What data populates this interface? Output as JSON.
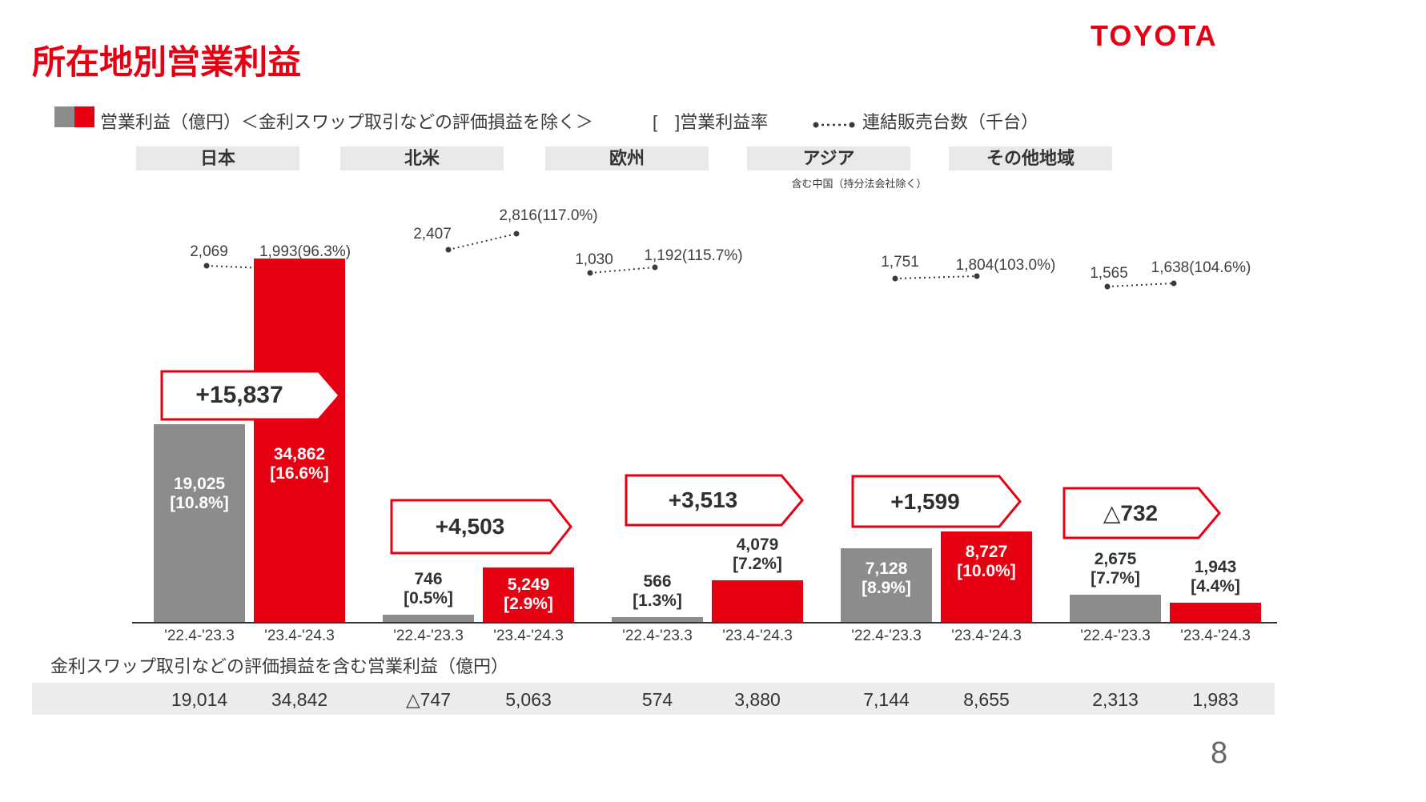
{
  "slide": {
    "title": "所在地別営業利益",
    "logo": "TOYOTA",
    "page_number": "8"
  },
  "legend": {
    "bars": "営業利益（億円）＜金利スワップ取引などの評価損益を除く＞",
    "margin": "[　]営業利益率",
    "sales": "連結販売台数（千台）"
  },
  "footer": {
    "note": "金利スワップ取引などの評価損益を含む営業利益（億円）"
  },
  "chart_data": {
    "type": "bar",
    "title": "所在地別営業利益（億円）＜金利スワップ取引などの評価損益を除く＞",
    "unit": "億円",
    "categories": [
      "'22.4-'23.3",
      "'23.4-'24.3"
    ],
    "ylim": [
      0,
      35000
    ],
    "grid": false,
    "legend_position": "top",
    "colors": {
      "prev": "#8c8c8c",
      "curr": "#e60012",
      "accent": "#e60012"
    },
    "regions": [
      {
        "name": "日本",
        "note": "",
        "operating_income": [
          19025,
          34862
        ],
        "labels": [
          "19,025",
          "34,862"
        ],
        "margin_rates_pct": [
          10.8,
          16.6
        ],
        "margin_labels": [
          "[10.8%]",
          "[16.6%]"
        ],
        "change": "+15,837",
        "vehicle_sales": {
          "prev": "2,069",
          "curr": "1,993",
          "yoy": "(96.3%)"
        },
        "incl_swap": [
          "19,014",
          "34,842"
        ]
      },
      {
        "name": "北米",
        "note": "",
        "operating_income": [
          746,
          5249
        ],
        "labels": [
          "746",
          "5,249"
        ],
        "margin_rates_pct": [
          0.5,
          2.9
        ],
        "margin_labels": [
          "[0.5%]",
          "[2.9%]"
        ],
        "change": "+4,503",
        "vehicle_sales": {
          "prev": "2,407",
          "curr": "2,816",
          "yoy": "(117.0%)"
        },
        "incl_swap": [
          "△747",
          "5,063"
        ]
      },
      {
        "name": "欧州",
        "note": "",
        "operating_income": [
          566,
          4079
        ],
        "labels": [
          "566",
          "4,079"
        ],
        "margin_rates_pct": [
          1.3,
          7.2
        ],
        "margin_labels": [
          "[1.3%]",
          "[7.2%]"
        ],
        "change": "+3,513",
        "vehicle_sales": {
          "prev": "1,030",
          "curr": "1,192",
          "yoy": "(115.7%)"
        },
        "incl_swap": [
          "574",
          "3,880"
        ]
      },
      {
        "name": "アジア",
        "note": "含む中国（持分法会社除く）",
        "operating_income": [
          7128,
          8727
        ],
        "labels": [
          "7,128",
          "8,727"
        ],
        "margin_rates_pct": [
          8.9,
          10.0
        ],
        "margin_labels": [
          "[8.9%]",
          "[10.0%]"
        ],
        "change": "+1,599",
        "vehicle_sales": {
          "prev": "1,751",
          "curr": "1,804",
          "yoy": "(103.0%)"
        },
        "incl_swap": [
          "7,144",
          "8,655"
        ]
      },
      {
        "name": "その他地域",
        "note": "",
        "operating_income": [
          2675,
          1943
        ],
        "labels": [
          "2,675",
          "1,943"
        ],
        "margin_rates_pct": [
          7.7,
          4.4
        ],
        "margin_labels": [
          "[7.7%]",
          "[4.4%]"
        ],
        "change": "△732",
        "vehicle_sales": {
          "prev": "1,565",
          "curr": "1,638",
          "yoy": "(104.6%)"
        },
        "incl_swap": [
          "2,313",
          "1,983"
        ]
      }
    ]
  }
}
